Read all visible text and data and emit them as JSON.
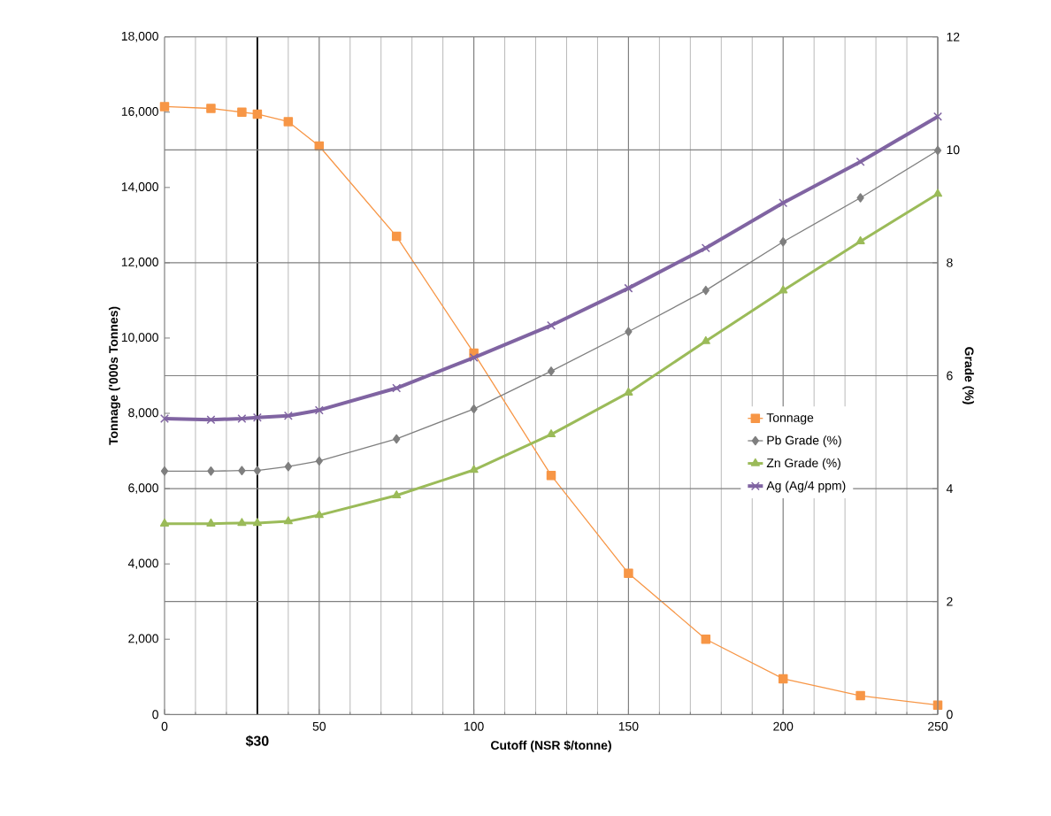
{
  "chart_data": {
    "type": "line",
    "xlabel": "Cutoff (NSR $/tonne)",
    "ylabel": "Tonnage ('000s Tonnes)",
    "y2label": "Grade (%)",
    "x": [
      0,
      15,
      25,
      30,
      40,
      50,
      75,
      100,
      125,
      150,
      175,
      200,
      225,
      250
    ],
    "series": [
      {
        "name": "Tonnage",
        "color": "#f79646",
        "marker": "square",
        "values": [
          16150,
          16100,
          16000,
          15950,
          15750,
          15100,
          12700,
          9600,
          6350,
          3750,
          2000,
          950,
          500,
          250
        ]
      },
      {
        "name": "Pb Grade (%)",
        "color": "#7f7f7f",
        "marker": "diamond",
        "axis": "y2",
        "values": [
          4.31,
          4.31,
          4.32,
          4.32,
          4.39,
          4.49,
          4.88,
          5.41,
          6.08,
          6.78,
          7.51,
          8.37,
          9.15,
          9.99
        ]
      },
      {
        "name": "Zn Grade (%)",
        "color": "#9bbb59",
        "marker": "triangle",
        "axis": "y2",
        "values": [
          3.38,
          3.38,
          3.39,
          3.39,
          3.42,
          3.53,
          3.88,
          4.33,
          4.96,
          5.7,
          6.61,
          7.51,
          8.38,
          9.22
        ]
      },
      {
        "name": "Ag (Ag/4 ppm)",
        "color": "#8064a2",
        "marker": "cross",
        "axis": "y2",
        "values": [
          5.24,
          5.22,
          5.24,
          5.26,
          5.29,
          5.39,
          5.78,
          6.32,
          6.89,
          7.55,
          8.26,
          9.06,
          9.79,
          10.59
        ]
      }
    ],
    "xlim": [
      0,
      250
    ],
    "xticks": [
      0,
      50,
      100,
      150,
      200,
      250
    ],
    "ylim": [
      0,
      18000
    ],
    "yticks": [
      0,
      {
        "value": 2000,
        "label": "2,000"
      },
      {
        "value": 4000,
        "label": "4,000"
      },
      {
        "value": 6000,
        "label": "6,000"
      },
      {
        "value": 8000,
        "label": "8,000"
      },
      {
        "value": 10000,
        "label": "10,000"
      },
      {
        "value": 12000,
        "label": "12,000"
      },
      {
        "value": 14000,
        "label": "14,000"
      },
      {
        "value": 16000,
        "label": "16,000"
      },
      {
        "value": 18000,
        "label": "18,000"
      }
    ],
    "y2lim": [
      0,
      12
    ],
    "y2ticks": [
      0,
      2,
      4,
      6,
      8,
      10,
      12
    ],
    "ref_lines": [
      {
        "axis": "x",
        "value": 30,
        "label": "$30",
        "color": "#000000"
      }
    ],
    "grid": true,
    "legend": "right"
  }
}
